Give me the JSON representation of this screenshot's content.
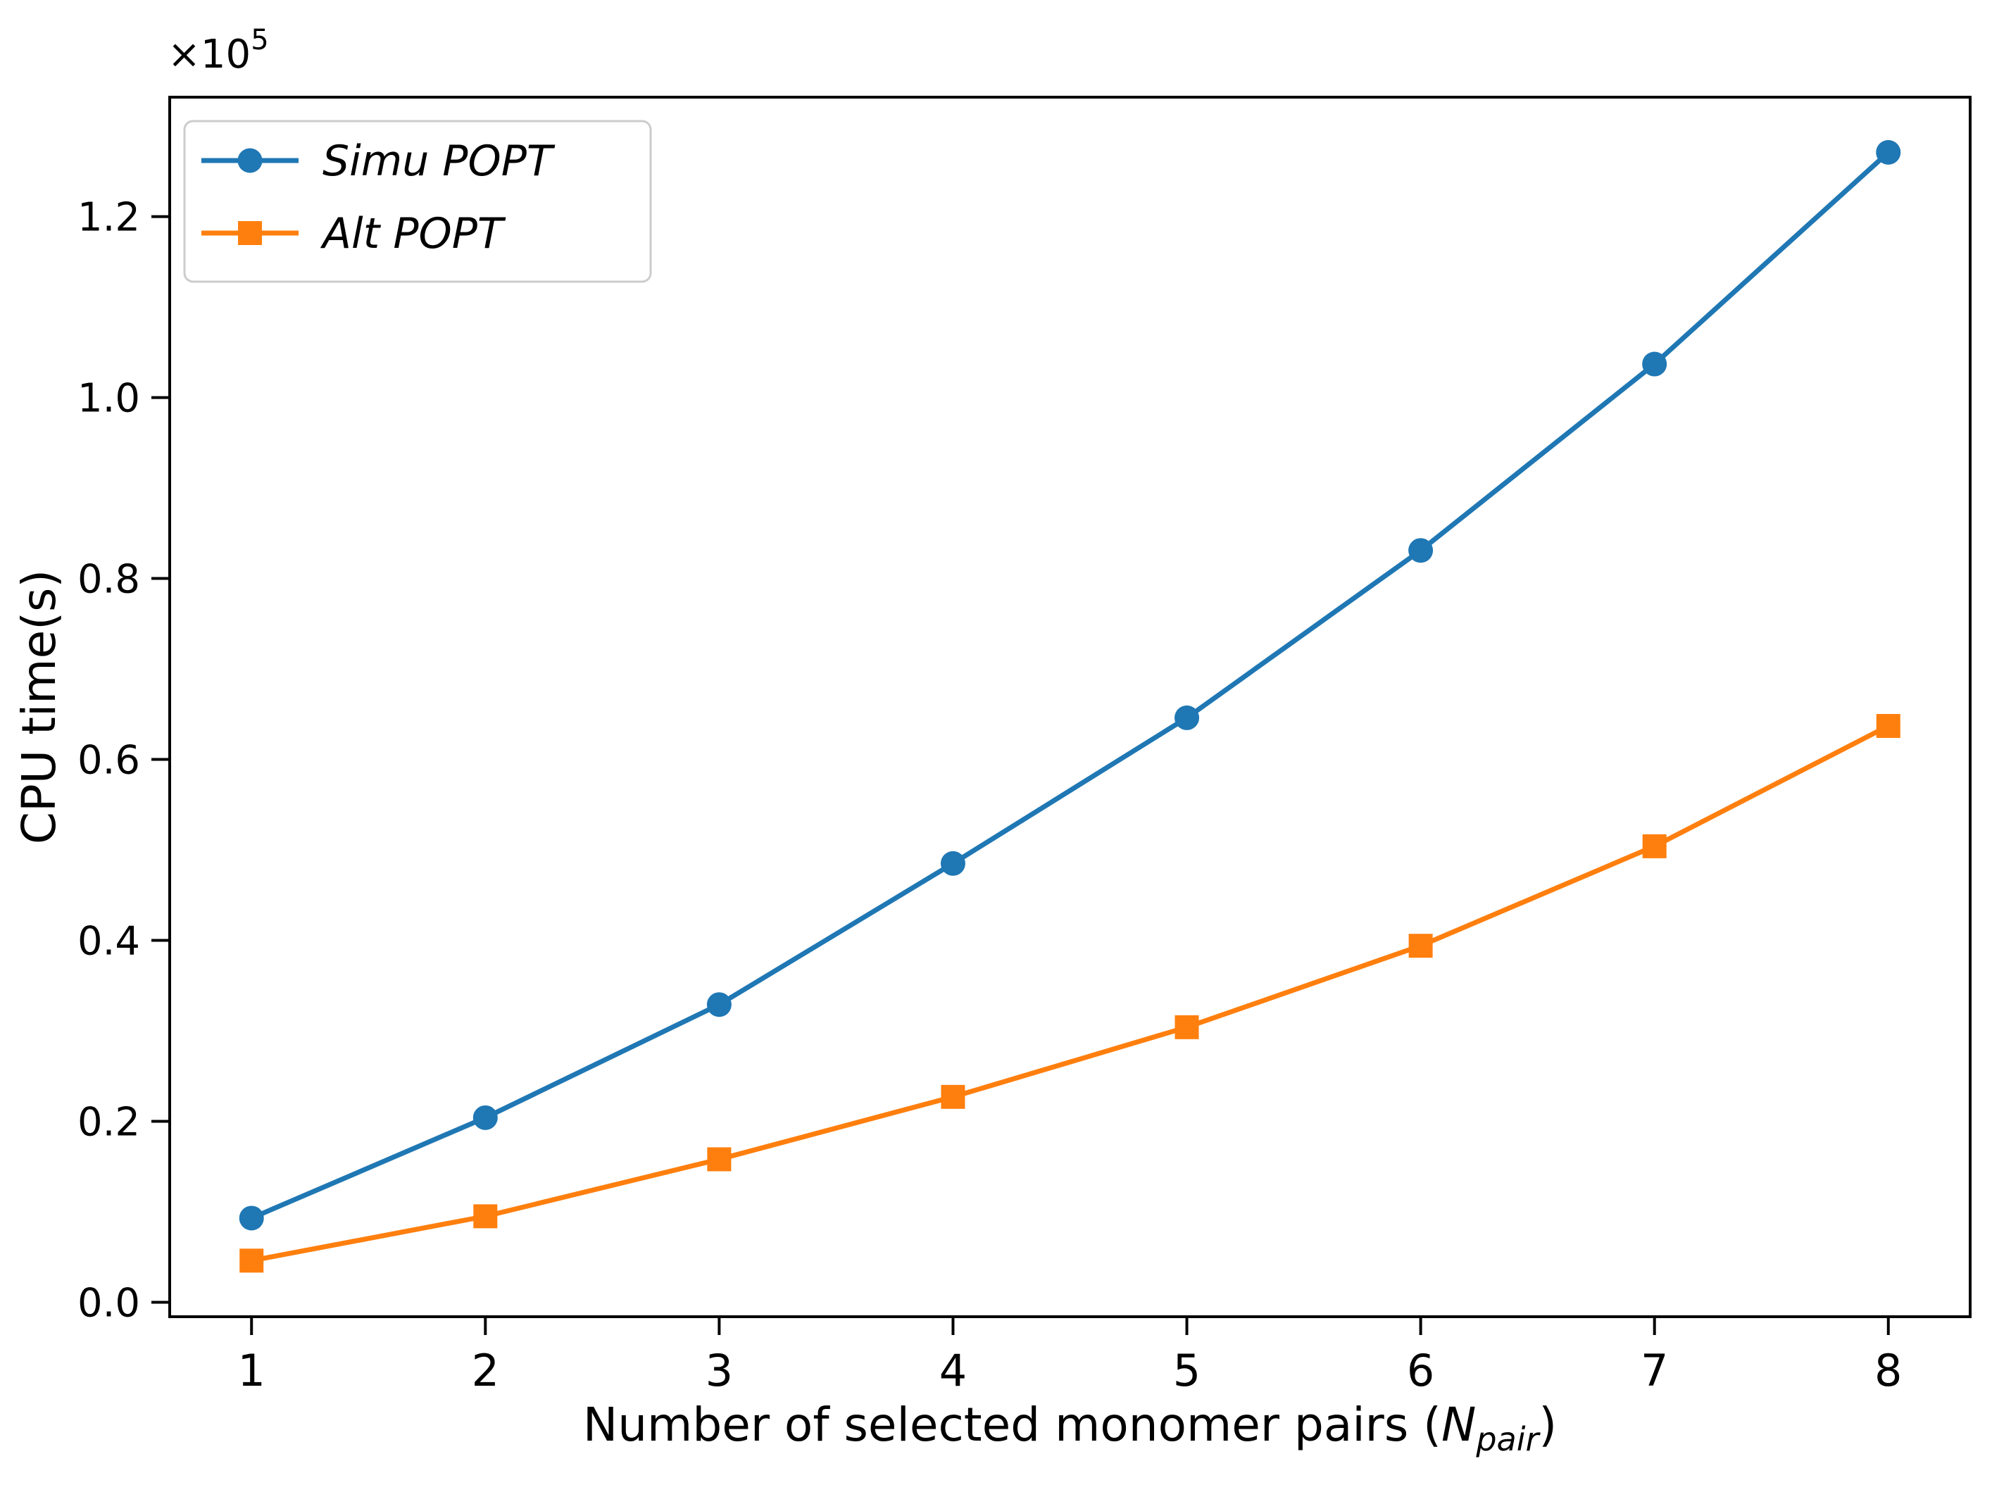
{
  "figure": {
    "background": "#ffffff",
    "axis_color": "#000000",
    "legend_border_color": "#cccccc",
    "legend_background": "#ffffff"
  },
  "chart_data": {
    "type": "line",
    "title": "",
    "xlabel": {
      "prefix": "Number of selected monomer pairs (",
      "variable": "N",
      "subscript": "pair",
      "suffix": ")"
    },
    "ylabel": "CPU time(s)",
    "y_offset_text": {
      "base": "×10",
      "exponent": "5"
    },
    "x": [
      1,
      2,
      3,
      4,
      5,
      6,
      7,
      8
    ],
    "x_tick_labels": [
      "1",
      "2",
      "3",
      "4",
      "5",
      "6",
      "7",
      "8"
    ],
    "y_tick_values": [
      0.0,
      0.2,
      0.4,
      0.6,
      0.8,
      1.0,
      1.2
    ],
    "y_tick_labels": [
      "0.0",
      "0.2",
      "0.4",
      "0.6",
      "0.8",
      "1.0",
      "1.2"
    ],
    "xlim": [
      0.65,
      8.35
    ],
    "ylim": [
      -0.016,
      1.332
    ],
    "grid": false,
    "legend_position": "upper left",
    "series": [
      {
        "name": "Simu POPT",
        "color": "#1f77b4",
        "marker": "circle",
        "values": [
          0.093,
          0.204,
          0.329,
          0.485,
          0.646,
          0.831,
          1.037,
          1.271
        ]
      },
      {
        "name": "Alt POPT",
        "color": "#ff7f0e",
        "marker": "square",
        "values": [
          0.046,
          0.095,
          0.158,
          0.227,
          0.304,
          0.394,
          0.504,
          0.637
        ]
      }
    ]
  }
}
